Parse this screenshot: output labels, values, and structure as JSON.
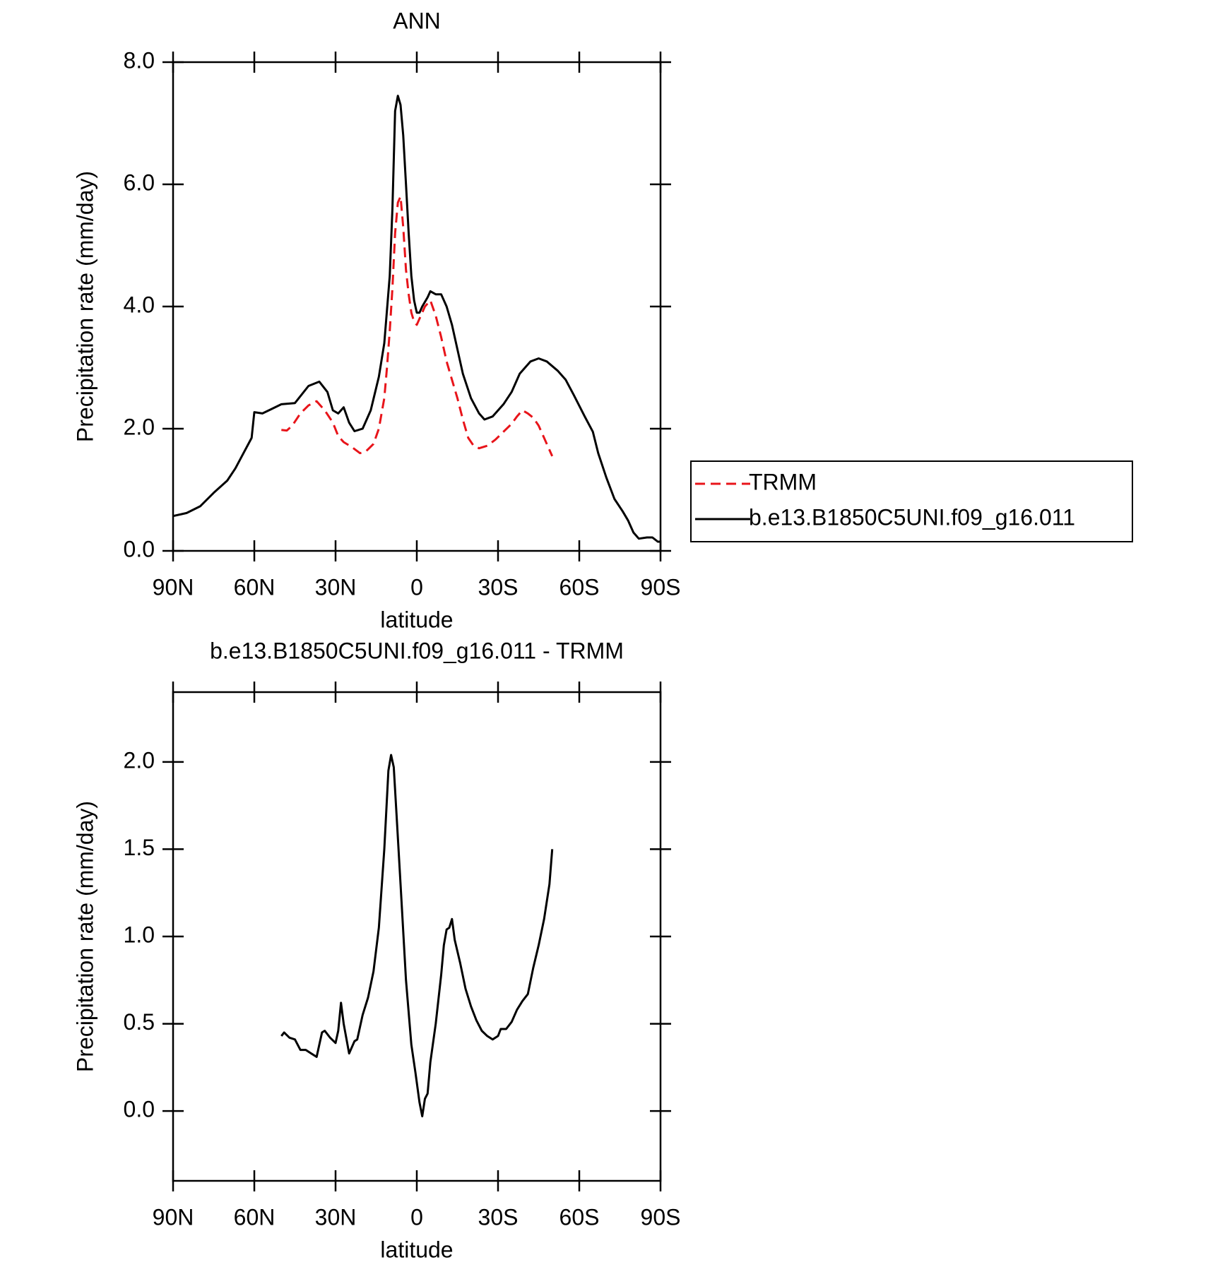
{
  "chart_data": [
    {
      "type": "line",
      "title": "ANN",
      "x_label": "latitude",
      "y_label": "Precipitation rate (mm/day)",
      "xlim": [
        -90,
        90
      ],
      "xticks": [
        {
          "value": -90,
          "label": "90N"
        },
        {
          "value": -60,
          "label": "60N"
        },
        {
          "value": -30,
          "label": "30N"
        },
        0,
        {
          "value": 30,
          "label": "30S"
        },
        {
          "value": 60,
          "label": "60S"
        },
        {
          "value": 90,
          "label": "90S"
        }
      ],
      "ylim": [
        0,
        8
      ],
      "yticks": [
        {
          "value": 0,
          "label": "0.0"
        },
        {
          "value": 2,
          "label": "2.0"
        },
        {
          "value": 4,
          "label": "4.0"
        },
        {
          "value": 6,
          "label": "6.0"
        },
        {
          "value": 8,
          "label": "8.0"
        }
      ],
      "legend": "right",
      "series": [
        {
          "name": "TRMM",
          "color": "#e8141a",
          "line_style": "dashed",
          "x": [
            -50,
            -48,
            -46,
            -43,
            -40,
            -37,
            -34,
            -31,
            -29,
            -27,
            -24,
            -21,
            -19,
            -16,
            -14,
            -12,
            -11,
            -10,
            -9,
            -8,
            -7,
            -6,
            -5,
            -4,
            -3,
            -2,
            -1,
            0,
            1,
            3,
            5,
            7,
            9,
            11,
            13,
            15,
            17,
            19,
            21,
            23,
            26,
            29,
            32,
            35,
            37,
            39,
            41,
            43,
            45,
            47,
            50
          ],
          "values": [
            1.98,
            1.97,
            2.05,
            2.25,
            2.38,
            2.45,
            2.3,
            2.1,
            1.88,
            1.78,
            1.7,
            1.6,
            1.62,
            1.75,
            2.0,
            2.5,
            3.0,
            3.6,
            4.3,
            5.2,
            5.7,
            5.8,
            5.3,
            4.6,
            4.2,
            3.9,
            3.75,
            3.7,
            3.8,
            4.0,
            4.1,
            3.85,
            3.5,
            3.1,
            2.8,
            2.5,
            2.15,
            1.85,
            1.72,
            1.68,
            1.72,
            1.82,
            1.95,
            2.08,
            2.2,
            2.3,
            2.25,
            2.18,
            2.05,
            1.85,
            1.55
          ]
        },
        {
          "name": "b.e13.B1850C5UNI.f09_g16.011",
          "color": "#000000",
          "line_style": "solid",
          "x": [
            -90,
            -85,
            -80,
            -75,
            -70,
            -67,
            -64,
            -61,
            -60,
            -57,
            -50,
            -45,
            -40,
            -36,
            -33,
            -31,
            -29,
            -27,
            -25,
            -23,
            -20,
            -17,
            -14,
            -12,
            -10,
            -9,
            -8,
            -7,
            -6,
            -5,
            -4,
            -3,
            -2,
            -1,
            0,
            1,
            2,
            4,
            5,
            7,
            9,
            11,
            13,
            15,
            17,
            20,
            23,
            25,
            28,
            32,
            35,
            38,
            42,
            45,
            48,
            52,
            55,
            58,
            62,
            65,
            67,
            70,
            73,
            76,
            78,
            80,
            82,
            85,
            87,
            89,
            90
          ],
          "values": [
            0.57,
            0.62,
            0.73,
            0.95,
            1.15,
            1.35,
            1.6,
            1.85,
            2.27,
            2.25,
            2.4,
            2.42,
            2.7,
            2.77,
            2.6,
            2.3,
            2.25,
            2.35,
            2.1,
            1.96,
            2.0,
            2.3,
            2.85,
            3.4,
            4.5,
            5.6,
            7.2,
            7.45,
            7.3,
            6.8,
            6.0,
            5.2,
            4.5,
            4.1,
            3.9,
            3.9,
            4.0,
            4.15,
            4.25,
            4.2,
            4.2,
            4.0,
            3.7,
            3.3,
            2.9,
            2.5,
            2.25,
            2.15,
            2.2,
            2.4,
            2.6,
            2.9,
            3.1,
            3.15,
            3.1,
            2.95,
            2.8,
            2.55,
            2.2,
            1.95,
            1.6,
            1.2,
            0.85,
            0.65,
            0.5,
            0.3,
            0.2,
            0.22,
            0.22,
            0.15,
            0.15
          ]
        }
      ]
    },
    {
      "type": "line",
      "title": "b.e13.B1850C5UNI.f09_g16.011 - TRMM",
      "x_label": "latitude",
      "y_label": "Precipitation rate (mm/day)",
      "xlim": [
        -90,
        90
      ],
      "xticks": [
        {
          "value": -90,
          "label": "90N"
        },
        {
          "value": -60,
          "label": "60N"
        },
        {
          "value": -30,
          "label": "30N"
        },
        0,
        {
          "value": 30,
          "label": "30S"
        },
        {
          "value": 60,
          "label": "60S"
        },
        {
          "value": 90,
          "label": "90S"
        }
      ],
      "ylim": [
        -0.4,
        2.4
      ],
      "yticks": [
        {
          "value": 0,
          "label": "0.0"
        },
        0.5,
        {
          "value": 1,
          "label": "1.0"
        },
        1.5,
        {
          "value": 2,
          "label": "2.0"
        }
      ],
      "series": [
        {
          "color": "#000000",
          "line_style": "solid",
          "x": [
            -50,
            -49,
            -47,
            -45,
            -43,
            -41,
            -39,
            -37,
            -35,
            -34,
            -32,
            -30,
            -29,
            -28,
            -27,
            -25,
            -23,
            -22,
            -20,
            -18,
            -16,
            -14,
            -12,
            -10.5,
            -9.5,
            -8.5,
            -7.5,
            -6,
            -4,
            -2,
            -0.5,
            1,
            2,
            3,
            4,
            5,
            7,
            9,
            10,
            11,
            12,
            13,
            14,
            16,
            18,
            20,
            22,
            24,
            26,
            28,
            30,
            31,
            33,
            35,
            37,
            39,
            41,
            43,
            45,
            47,
            49,
            50
          ],
          "values": [
            0.43,
            0.45,
            0.42,
            0.41,
            0.35,
            0.35,
            0.33,
            0.31,
            0.45,
            0.46,
            0.42,
            0.39,
            0.46,
            0.62,
            0.5,
            0.33,
            0.4,
            0.41,
            0.55,
            0.65,
            0.8,
            1.05,
            1.5,
            1.95,
            2.04,
            1.97,
            1.7,
            1.3,
            0.75,
            0.38,
            0.22,
            0.05,
            -0.03,
            0.07,
            0.1,
            0.28,
            0.5,
            0.78,
            0.95,
            1.04,
            1.05,
            1.1,
            0.98,
            0.85,
            0.7,
            0.6,
            0.52,
            0.46,
            0.43,
            0.41,
            0.43,
            0.47,
            0.47,
            0.51,
            0.58,
            0.63,
            0.67,
            0.82,
            0.95,
            1.1,
            1.3,
            1.5
          ]
        }
      ]
    }
  ]
}
